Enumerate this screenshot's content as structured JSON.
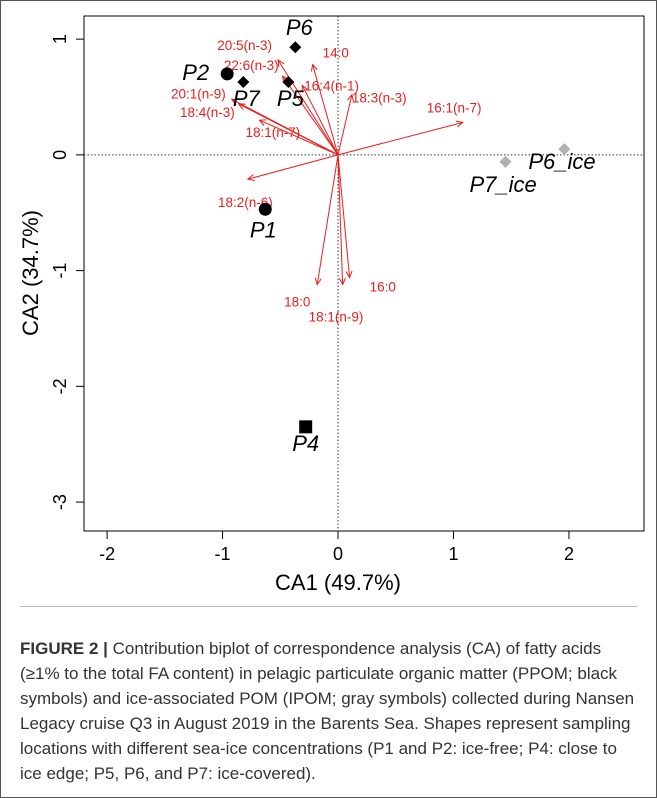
{
  "chart_data": {
    "type": "scatter",
    "xlabel": "CA1 (49.7%)",
    "ylabel": "CA2 (34.7%)",
    "xlim": [
      -2.2,
      2.65
    ],
    "ylim": [
      -3.25,
      1.2
    ],
    "xticks": [
      "-2",
      "-1",
      "0",
      "1",
      "2"
    ],
    "xtick_values": [
      -2,
      -1,
      0,
      1,
      2
    ],
    "yticks": [
      "-3",
      "-2",
      "-1",
      "0",
      "1"
    ],
    "ytick_values": [
      -3,
      -2,
      -1,
      0,
      1
    ],
    "grid": false,
    "reference_lines": [
      0,
      0
    ],
    "colors": {
      "sample_black": "#000000",
      "sample_gray": "#b0b0b0",
      "arrow": "#ee1c1c"
    },
    "samples": [
      {
        "label": "P1",
        "x": -0.63,
        "y": -0.47,
        "shape": "circle",
        "color": "black"
      },
      {
        "label": "P2",
        "x": -0.96,
        "y": 0.7,
        "shape": "circle",
        "color": "black"
      },
      {
        "label": "P4",
        "x": -0.28,
        "y": -2.35,
        "shape": "square",
        "color": "black"
      },
      {
        "label": "P5",
        "x": -0.43,
        "y": 0.63,
        "shape": "diamond",
        "color": "black"
      },
      {
        "label": "P6",
        "x": -0.37,
        "y": 0.93,
        "shape": "diamond",
        "color": "black"
      },
      {
        "label": "P7",
        "x": -0.82,
        "y": 0.63,
        "shape": "diamond",
        "color": "black"
      },
      {
        "label": "P6_ice",
        "x": 1.96,
        "y": 0.05,
        "shape": "diamond",
        "color": "gray"
      },
      {
        "label": "P7_ice",
        "x": 1.45,
        "y": -0.06,
        "shape": "diamond",
        "color": "gray"
      }
    ],
    "arrows": [
      {
        "label": "20:5(n-3)",
        "x": -0.52,
        "y": 0.82
      },
      {
        "label": "22:6(n-3)",
        "x": -0.48,
        "y": 0.68
      },
      {
        "label": "14:0",
        "x": -0.22,
        "y": 0.78
      },
      {
        "label": "16:4(n-1)",
        "x": -0.31,
        "y": 0.6
      },
      {
        "label": "20:1(n-9)",
        "x": -0.92,
        "y": 0.48
      },
      {
        "label": "18:4(n-3)",
        "x": -0.86,
        "y": 0.44
      },
      {
        "label": "18:1(n-7)",
        "x": -0.68,
        "y": 0.3
      },
      {
        "label": "18:3(n-3)",
        "x": 0.12,
        "y": 0.52
      },
      {
        "label": "16:1(n-7)",
        "x": 1.08,
        "y": 0.28
      },
      {
        "label": "18:2(n-6)",
        "x": -0.78,
        "y": -0.21
      },
      {
        "label": "18:0",
        "x": -0.18,
        "y": -1.12
      },
      {
        "label": "16:0",
        "x": 0.1,
        "y": -1.06
      },
      {
        "label": "18:1(n-9)",
        "x": 0.04,
        "y": -1.12
      }
    ]
  },
  "caption": {
    "figure_label": "FIGURE 2",
    "separator": " | ",
    "text": "Contribution biplot of correspondence analysis (CA) of fatty acids (≥1% to the total FA content) in pelagic particulate organic matter (PPOM; black symbols) and ice-associated POM (IPOM; gray symbols) collected during Nansen Legacy cruise Q3 in August 2019 in the Barents Sea. Shapes represent sampling locations with different sea-ice concentrations (P1 and P2: ice-free; P4: close to ice edge; P5, P6, and P7: ice-covered)."
  }
}
